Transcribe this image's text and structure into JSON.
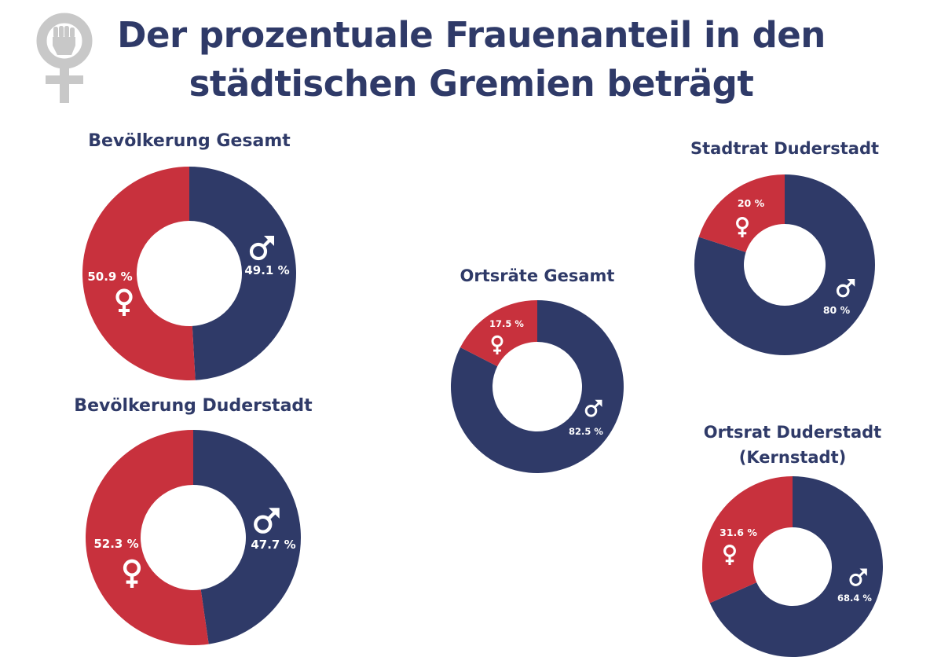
{
  "title": {
    "line1": "Der prozentuale Frauenanteil in den",
    "line2": "städtischen Gremien beträgt"
  },
  "logo_icon": "female-symbol-with-raised-fist",
  "colors": {
    "female": "#c8313d",
    "male": "#2f3a68",
    "title": "#2f3a68",
    "logo": "#c8c8c8"
  },
  "chart_data": [
    {
      "type": "pie",
      "title": [
        "Bevölkerung Gesamt"
      ],
      "series": [
        {
          "name": "female",
          "value": 50.9,
          "label": "50.9 %"
        },
        {
          "name": "male",
          "value": 49.1,
          "label": "49.1 %"
        }
      ]
    },
    {
      "type": "pie",
      "title": [
        "Bevölkerung Duderstadt"
      ],
      "series": [
        {
          "name": "female",
          "value": 52.3,
          "label": "52.3 %"
        },
        {
          "name": "male",
          "value": 47.7,
          "label": "47.7 %"
        }
      ]
    },
    {
      "type": "pie",
      "title": [
        "Ortsräte Gesamt"
      ],
      "series": [
        {
          "name": "female",
          "value": 17.5,
          "label": "17.5 %"
        },
        {
          "name": "male",
          "value": 82.5,
          "label": "82.5 %"
        }
      ]
    },
    {
      "type": "pie",
      "title": [
        "Stadtrat Duderstadt"
      ],
      "series": [
        {
          "name": "female",
          "value": 20,
          "label": "20 %"
        },
        {
          "name": "male",
          "value": 80,
          "label": "80 %"
        }
      ]
    },
    {
      "type": "pie",
      "title": [
        "Ortsrat Duderstadt",
        "(Kernstadt)"
      ],
      "series": [
        {
          "name": "female",
          "value": 31.6,
          "label": "31.6 %"
        },
        {
          "name": "male",
          "value": 68.4,
          "label": "68.4 %"
        }
      ]
    }
  ]
}
